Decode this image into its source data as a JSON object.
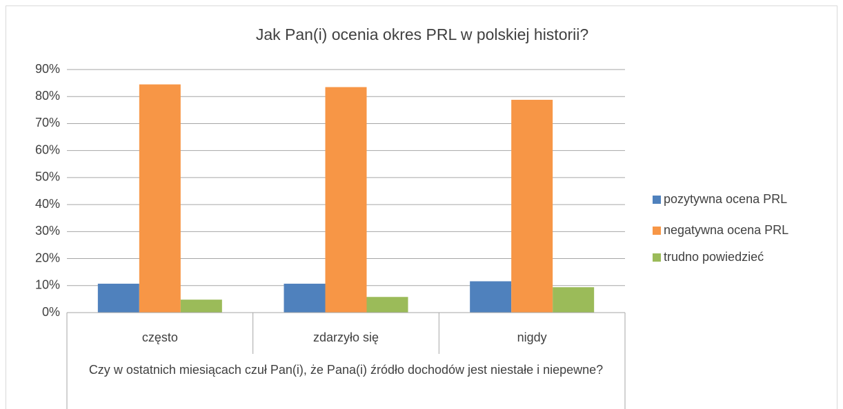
{
  "chart_data": {
    "type": "bar",
    "title": "Jak Pan(i) ocenia okres PRL w polskiej historii?",
    "x_label": "Czy w ostatnich miesiącach czuł Pan(i), że Pana(i) źródło dochodów jest niestałe i niepewne?",
    "categories": [
      "często",
      "zdarzyło się",
      "nigdy"
    ],
    "series": [
      {
        "name": "pozytywna ocena PRL",
        "color": "#4f81bd",
        "values": [
          10.7,
          10.7,
          11.6
        ]
      },
      {
        "name": "negatywna ocena PRL",
        "color": "#f79646",
        "values": [
          84.5,
          83.5,
          78.8
        ]
      },
      {
        "name": "trudno powiedzieć",
        "color": "#9bbb59",
        "values": [
          4.8,
          5.8,
          9.4
        ]
      }
    ],
    "ylim": [
      0,
      90
    ],
    "yticks": [
      {
        "value": 0,
        "label": "0%"
      },
      {
        "value": 10,
        "label": "10%"
      },
      {
        "value": 20,
        "label": "20%"
      },
      {
        "value": 30,
        "label": "30%"
      },
      {
        "value": 40,
        "label": "40%"
      },
      {
        "value": 50,
        "label": "50%"
      },
      {
        "value": 60,
        "label": "60%"
      },
      {
        "value": 70,
        "label": "70%"
      },
      {
        "value": 80,
        "label": "80%"
      },
      {
        "value": 90,
        "label": "90%"
      }
    ],
    "grid": true,
    "legend": "right"
  }
}
